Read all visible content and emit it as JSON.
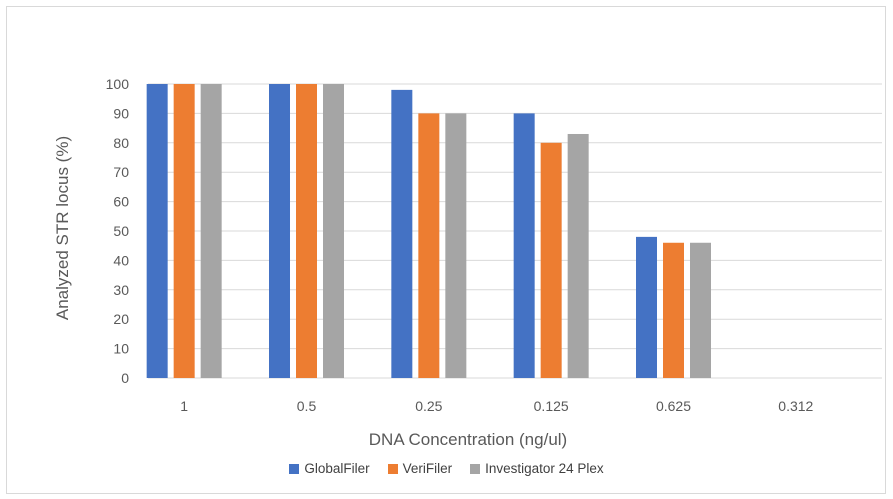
{
  "chart_data": {
    "type": "bar",
    "categories": [
      "1",
      "0.5",
      "0.25",
      "0.125",
      "0.625",
      "0.312"
    ],
    "series": [
      {
        "name": "GlobalFiler",
        "values": [
          100,
          100,
          98,
          90,
          48,
          0
        ],
        "color": "#4472c4"
      },
      {
        "name": "VeriFiler",
        "values": [
          100,
          100,
          90,
          80,
          46,
          0
        ],
        "color": "#ed7d31"
      },
      {
        "name": "Investigator 24 Plex",
        "values": [
          100,
          100,
          90,
          83,
          46,
          0
        ],
        "color": "#a5a5a5"
      }
    ],
    "title": "",
    "xlabel": "DNA Concentration (ng/ul)",
    "ylabel": "Analyzed STR locus (%)",
    "ylim": [
      0,
      100
    ],
    "yticks": [
      0,
      10,
      20,
      30,
      40,
      50,
      60,
      70,
      80,
      90,
      100
    ],
    "grid": true,
    "legend_position": "bottom",
    "colors": {
      "gridline": "#d9d9d9",
      "text": "#595959"
    }
  }
}
